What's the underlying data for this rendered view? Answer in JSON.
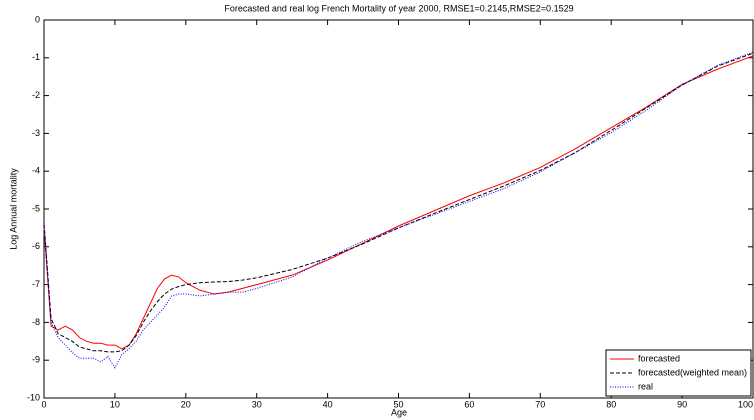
{
  "chart_data": {
    "type": "line",
    "title": "Forecasted and real log French Mortality of year 2000, RMSE1=0.2145,RMSE2=0.1529",
    "x_label": "Age",
    "y_label": "Log Annual mortality",
    "x": [
      0,
      1,
      2,
      3,
      4,
      5,
      6,
      7,
      8,
      9,
      10,
      11,
      12,
      13,
      14,
      15,
      16,
      17,
      18,
      19,
      20,
      22,
      24,
      26,
      28,
      30,
      35,
      40,
      45,
      50,
      55,
      60,
      65,
      70,
      75,
      80,
      85,
      90,
      95,
      100
    ],
    "series": [
      {
        "name": "forecasted",
        "color": "#ff0000",
        "dash": "solid",
        "values": [
          -5.5,
          -8.1,
          -8.2,
          -8.1,
          -8.2,
          -8.4,
          -8.5,
          -8.55,
          -8.55,
          -8.6,
          -8.6,
          -8.7,
          -8.6,
          -8.3,
          -7.9,
          -7.5,
          -7.1,
          -6.85,
          -6.75,
          -6.8,
          -6.95,
          -7.15,
          -7.25,
          -7.2,
          -7.1,
          -7.0,
          -6.75,
          -6.35,
          -5.9,
          -5.45,
          -5.05,
          -4.65,
          -4.3,
          -3.9,
          -3.4,
          -2.85,
          -2.3,
          -1.7,
          -1.3,
          -0.95
        ]
      },
      {
        "name": "forecasted(weighted mean)",
        "color": "#000000",
        "dash": "dashed",
        "values": [
          -5.4,
          -7.9,
          -8.3,
          -8.4,
          -8.5,
          -8.65,
          -8.7,
          -8.75,
          -8.75,
          -8.78,
          -8.78,
          -8.75,
          -8.6,
          -8.35,
          -8.0,
          -7.7,
          -7.45,
          -7.25,
          -7.12,
          -7.05,
          -7.0,
          -6.95,
          -6.93,
          -6.92,
          -6.88,
          -6.82,
          -6.6,
          -6.3,
          -5.92,
          -5.5,
          -5.12,
          -4.75,
          -4.38,
          -3.98,
          -3.5,
          -2.92,
          -2.32,
          -1.72,
          -1.22,
          -0.88
        ]
      },
      {
        "name": "real",
        "color": "#0000ff",
        "dash": "dotted",
        "values": [
          -5.3,
          -8.0,
          -8.4,
          -8.6,
          -8.8,
          -8.95,
          -8.95,
          -8.95,
          -9.05,
          -8.9,
          -9.2,
          -8.85,
          -8.7,
          -8.5,
          -8.2,
          -8.0,
          -7.8,
          -7.6,
          -7.3,
          -7.25,
          -7.25,
          -7.3,
          -7.25,
          -7.2,
          -7.2,
          -7.1,
          -6.8,
          -6.3,
          -5.85,
          -5.5,
          -5.15,
          -4.8,
          -4.45,
          -4.02,
          -3.5,
          -2.98,
          -2.38,
          -1.72,
          -1.2,
          -0.85
        ]
      }
    ],
    "xlim": [
      0,
      100
    ],
    "xticks": [
      0,
      10,
      20,
      30,
      40,
      50,
      60,
      70,
      80,
      90,
      100
    ],
    "ylim": [
      -10,
      0
    ],
    "yticks": [
      0,
      -1,
      -2,
      -3,
      -4,
      -5,
      -6,
      -7,
      -8,
      -9,
      -10
    ],
    "grid": false,
    "legend": "bottom-right"
  }
}
